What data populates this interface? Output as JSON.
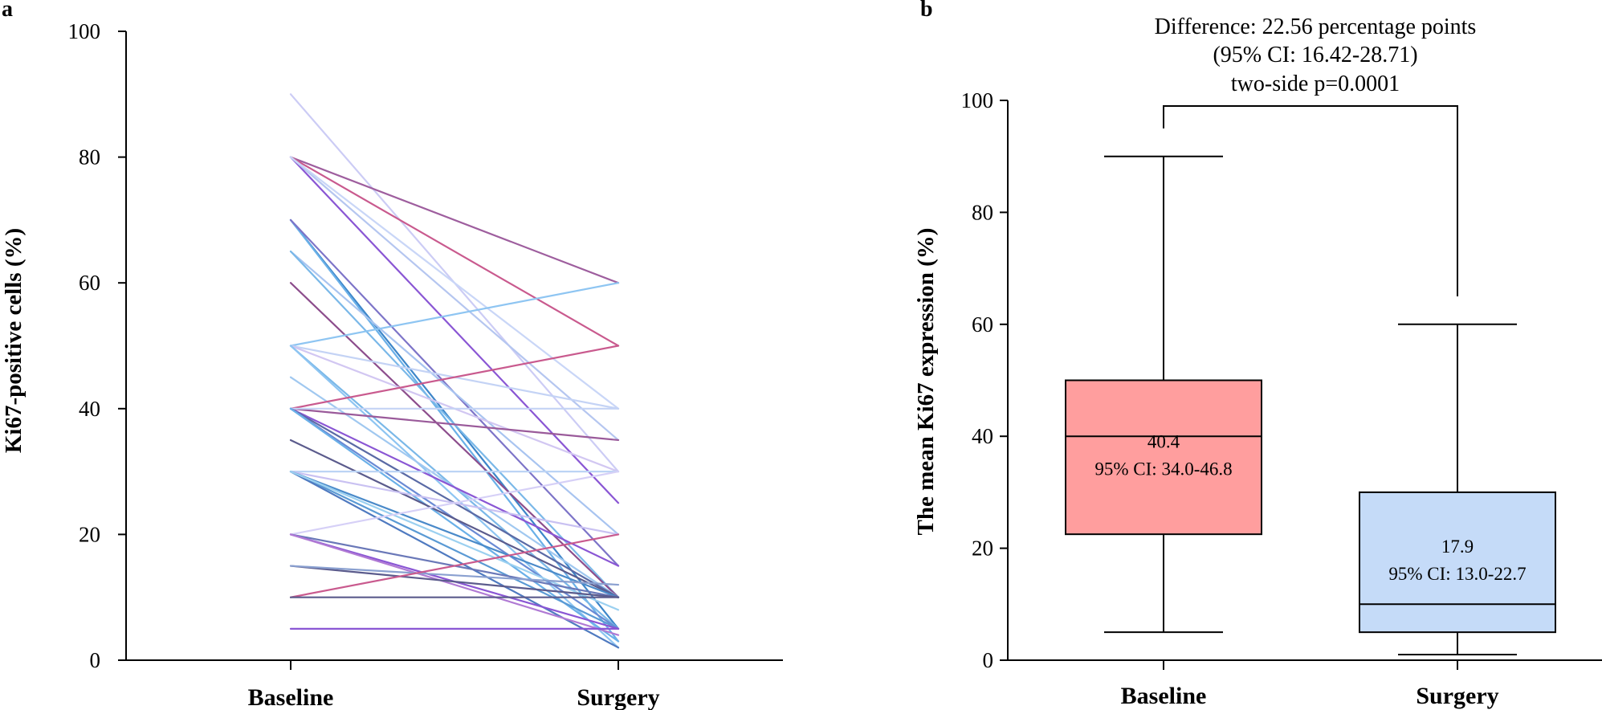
{
  "panels": {
    "a": {
      "label": "a"
    },
    "b": {
      "label": "b"
    }
  },
  "chart_data": [
    {
      "type": "line",
      "panel": "a",
      "title": "",
      "xlabel": "",
      "ylabel": "Ki67-positive cells (%)",
      "categories": [
        "Baseline",
        "Surgery"
      ],
      "ylim": [
        0,
        100
      ],
      "yticks": [
        0,
        20,
        40,
        60,
        80,
        100
      ],
      "series": [
        {
          "values": [
            90,
            30
          ],
          "color": "#ccccf5"
        },
        {
          "values": [
            80,
            60
          ],
          "color": "#9e5e9e"
        },
        {
          "values": [
            80,
            50
          ],
          "color": "#c95a8e"
        },
        {
          "values": [
            80,
            25
          ],
          "color": "#8a56d4"
        },
        {
          "values": [
            80,
            35
          ],
          "color": "#b5c6f0"
        },
        {
          "values": [
            80,
            40
          ],
          "color": "#c9d6f7"
        },
        {
          "values": [
            70,
            5
          ],
          "color": "#3d86c9"
        },
        {
          "values": [
            70,
            3
          ],
          "color": "#6ab0e8"
        },
        {
          "values": [
            70,
            15
          ],
          "color": "#7d74c8"
        },
        {
          "values": [
            65,
            20
          ],
          "color": "#a8c4f0"
        },
        {
          "values": [
            65,
            10
          ],
          "color": "#7ab8e8"
        },
        {
          "values": [
            60,
            10
          ],
          "color": "#8c4d8c"
        },
        {
          "values": [
            50,
            60
          ],
          "color": "#8ec5f2"
        },
        {
          "values": [
            50,
            40
          ],
          "color": "#c4d3f5"
        },
        {
          "values": [
            50,
            30
          ],
          "color": "#d2c7f2"
        },
        {
          "values": [
            50,
            5
          ],
          "color": "#7ab8e8"
        },
        {
          "values": [
            50,
            2
          ],
          "color": "#8ec5f2"
        },
        {
          "values": [
            45,
            10
          ],
          "color": "#a0c8f0"
        },
        {
          "values": [
            40,
            50
          ],
          "color": "#c95a8e"
        },
        {
          "values": [
            40,
            35
          ],
          "color": "#9a5a9a"
        },
        {
          "values": [
            40,
            40
          ],
          "color": "#c4d3f5"
        },
        {
          "values": [
            40,
            15
          ],
          "color": "#8a56d4"
        },
        {
          "values": [
            40,
            10
          ],
          "color": "#5a6aa5"
        },
        {
          "values": [
            40,
            5
          ],
          "color": "#6a8ad4"
        },
        {
          "values": [
            40,
            3
          ],
          "color": "#6ab0e8"
        },
        {
          "values": [
            35,
            10
          ],
          "color": "#5b5b8c"
        },
        {
          "values": [
            30,
            30
          ],
          "color": "#bcd4f5"
        },
        {
          "values": [
            30,
            20
          ],
          "color": "#c9c1f2"
        },
        {
          "values": [
            30,
            10
          ],
          "color": "#4a8ac9"
        },
        {
          "values": [
            30,
            5
          ],
          "color": "#5a9ad4"
        },
        {
          "values": [
            30,
            2
          ],
          "color": "#4f7ac0"
        },
        {
          "values": [
            30,
            8
          ],
          "color": "#9bd0f0"
        },
        {
          "values": [
            20,
            30
          ],
          "color": "#d6d0f7"
        },
        {
          "values": [
            20,
            10
          ],
          "color": "#6a78b8"
        },
        {
          "values": [
            20,
            5
          ],
          "color": "#8a56d4"
        },
        {
          "values": [
            20,
            4
          ],
          "color": "#b07ad4"
        },
        {
          "values": [
            15,
            10
          ],
          "color": "#5b5b8c"
        },
        {
          "values": [
            15,
            12
          ],
          "color": "#8aa0d0"
        },
        {
          "values": [
            10,
            20
          ],
          "color": "#c95a8e"
        },
        {
          "values": [
            10,
            10
          ],
          "color": "#5b5b8c"
        },
        {
          "values": [
            5,
            5
          ],
          "color": "#8a56d4"
        }
      ]
    },
    {
      "type": "box",
      "panel": "b",
      "title": "",
      "xlabel": "",
      "ylabel": "The mean Ki67 expression (%)",
      "categories": [
        "Baseline",
        "Surgery"
      ],
      "ylim": [
        0,
        100
      ],
      "yticks": [
        0,
        20,
        40,
        60,
        80,
        100
      ],
      "boxes": [
        {
          "name": "Baseline",
          "min": 5,
          "q1": 22.5,
          "median": 40,
          "q3": 50,
          "max": 90,
          "mean_label": "40.4",
          "ci_label": "95% CI:  34.0-46.8",
          "color": "#ff9e9e"
        },
        {
          "name": "Surgery",
          "min": 1,
          "q1": 5,
          "median": 10,
          "q3": 30,
          "max": 60,
          "mean_label": "17.9",
          "ci_label": "95% CI:  13.0-22.7",
          "color": "#c5dbf8"
        }
      ],
      "bracket": {
        "left_from": 95,
        "right_from": 65,
        "top": 99
      },
      "annotation": [
        "Difference: 22.56 percentage points",
        "(95% CI: 16.42-28.71)",
        "two-side p=0.0001"
      ]
    }
  ]
}
